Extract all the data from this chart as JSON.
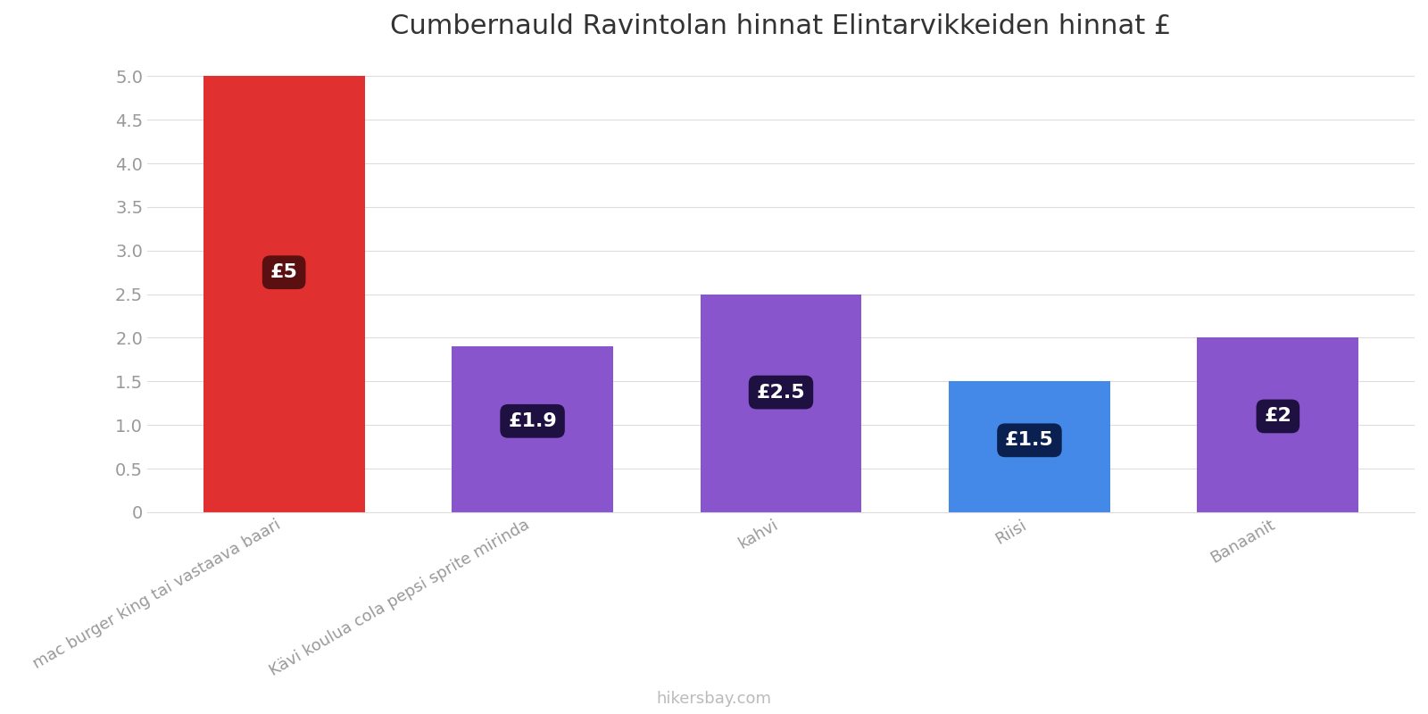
{
  "title": "Cumbernauld Ravintolan hinnat Elintarvikkeiden hinnat £",
  "categories": [
    "mac burger king tai vastaava baari",
    "Kävi koulua cola pepsi sprite mirinda",
    "kahvi",
    "Riisi",
    "Banaanit"
  ],
  "values": [
    5.0,
    1.9,
    2.5,
    1.5,
    2.0
  ],
  "bar_colors": [
    "#e03030",
    "#8855cc",
    "#8855cc",
    "#4488e8",
    "#8855cc"
  ],
  "label_colors": [
    "#5a1010",
    "#1e1040",
    "#1e1040",
    "#0a2050",
    "#1e1040"
  ],
  "labels": [
    "£5",
    "£1.9",
    "£2.5",
    "£1.5",
    "£2"
  ],
  "ylim": [
    0,
    5.2
  ],
  "yticks": [
    0.0,
    0.5,
    1.0,
    1.5,
    2.0,
    2.5,
    3.0,
    3.5,
    4.0,
    4.5,
    5.0
  ],
  "background_color": "#ffffff",
  "grid_color": "#dddddd",
  "footer_text": "hikersbay.com",
  "title_fontsize": 22,
  "label_fontsize": 16,
  "tick_fontsize": 14,
  "footer_fontsize": 13
}
